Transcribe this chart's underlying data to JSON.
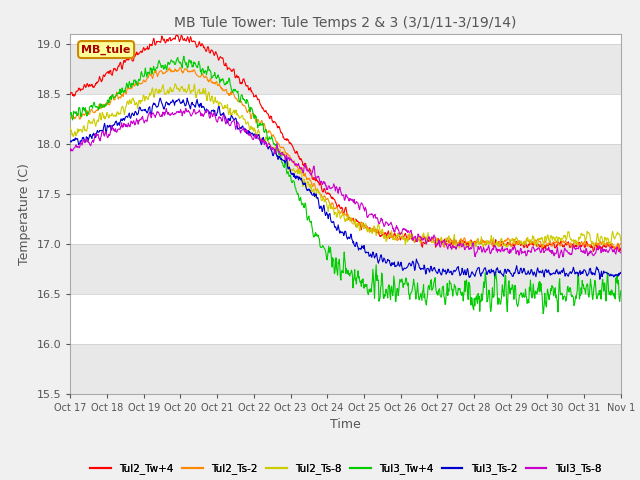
{
  "title": "MB Tule Tower: Tule Temps 2 & 3 (3/1/11-3/19/14)",
  "xlabel": "Time",
  "ylabel": "Temperature (C)",
  "ylim": [
    15.5,
    19.1
  ],
  "yticks": [
    15.5,
    16.0,
    16.5,
    17.0,
    17.5,
    18.0,
    18.5,
    19.0
  ],
  "x_labels": [
    "Oct 17",
    "Oct 18",
    "Oct 19",
    "Oct 20",
    "Oct 21",
    "Oct 22",
    "Oct 23",
    "Oct 24",
    "Oct 25",
    "Oct 26",
    "Oct 27",
    "Oct 28",
    "Oct 29",
    "Oct 30",
    "Oct 31",
    "Nov 1"
  ],
  "legend_labels": [
    "Tul2_Tw+4",
    "Tul2_Ts-2",
    "Tul2_Ts-8",
    "Tul3_Tw+4",
    "Tul3_Ts-2",
    "Tul3_Ts-8"
  ],
  "line_colors": [
    "#ff0000",
    "#ff8800",
    "#cccc00",
    "#00cc00",
    "#0000cc",
    "#cc00cc"
  ],
  "legend_box_color": "#ffff99",
  "legend_box_edge": "#cc8800",
  "background_color": "#f0f0f0",
  "plot_bg_color": "#ffffff",
  "band_color": "#e8e8e8",
  "title_color": "#555555",
  "axis_label_color": "#555555",
  "tick_label_color": "#555555",
  "n_points": 1000
}
